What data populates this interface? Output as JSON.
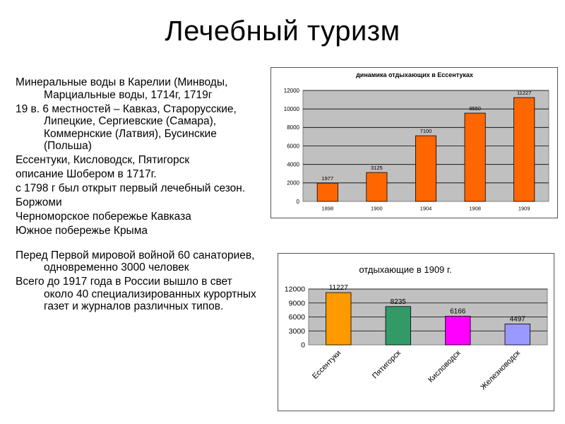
{
  "slide": {
    "title": "Лечебный туризм",
    "bullets": [
      "Минеральные воды в Карелии (Минводы, Марциальные воды, 1714г, 1719г",
      "19 в. 6 местностей – Кавказ, Старорусские, Липецкие, Сергиевские (Самара), Коммернские (Латвия), Бусинские (Польша)",
      "Ессентуки, Кисловодск, Пятигорск",
      "описание Шобером в 1717г.",
      "с 1798 г был открыт первый лечебный сезон.",
      "Боржоми",
      "Черноморское побережье Кавказа",
      "Южное побережье Крыма",
      "Перед Первой мировой войной 60 санаториев, одновременно 3000 человек",
      "Всего до 1917 года в России вышло в свет около 40 специализированных курортных газет и журналов различных типов."
    ]
  },
  "chart_data": [
    {
      "type": "bar",
      "title": "динамика отдыхающих в Ессентуках",
      "categories": [
        "1898",
        "1900",
        "1904",
        "1908",
        "1909"
      ],
      "values": [
        1977,
        3125,
        7100,
        9550,
        11227
      ],
      "ylim": [
        0,
        12000
      ],
      "yticks": [
        0,
        2000,
        4000,
        6000,
        8000,
        10000,
        12000
      ],
      "grid": true,
      "plot_background": "#c0c0c0",
      "bar_color": "#ff6600",
      "legend": "none"
    },
    {
      "type": "bar",
      "title": "отдыхающие в 1909 г.",
      "categories": [
        "Ессентуки",
        "Пятигорск",
        "Кисловодск",
        "Железноводск"
      ],
      "values": [
        11227,
        8235,
        6166,
        4497
      ],
      "ylim": [
        0,
        12000
      ],
      "yticks": [
        0,
        3000,
        6000,
        9000,
        12000
      ],
      "grid": true,
      "plot_background": "#c0c0c0",
      "bar_colors": [
        "#ff9900",
        "#339966",
        "#ff00ff",
        "#9999ff"
      ],
      "legend": "none"
    }
  ]
}
